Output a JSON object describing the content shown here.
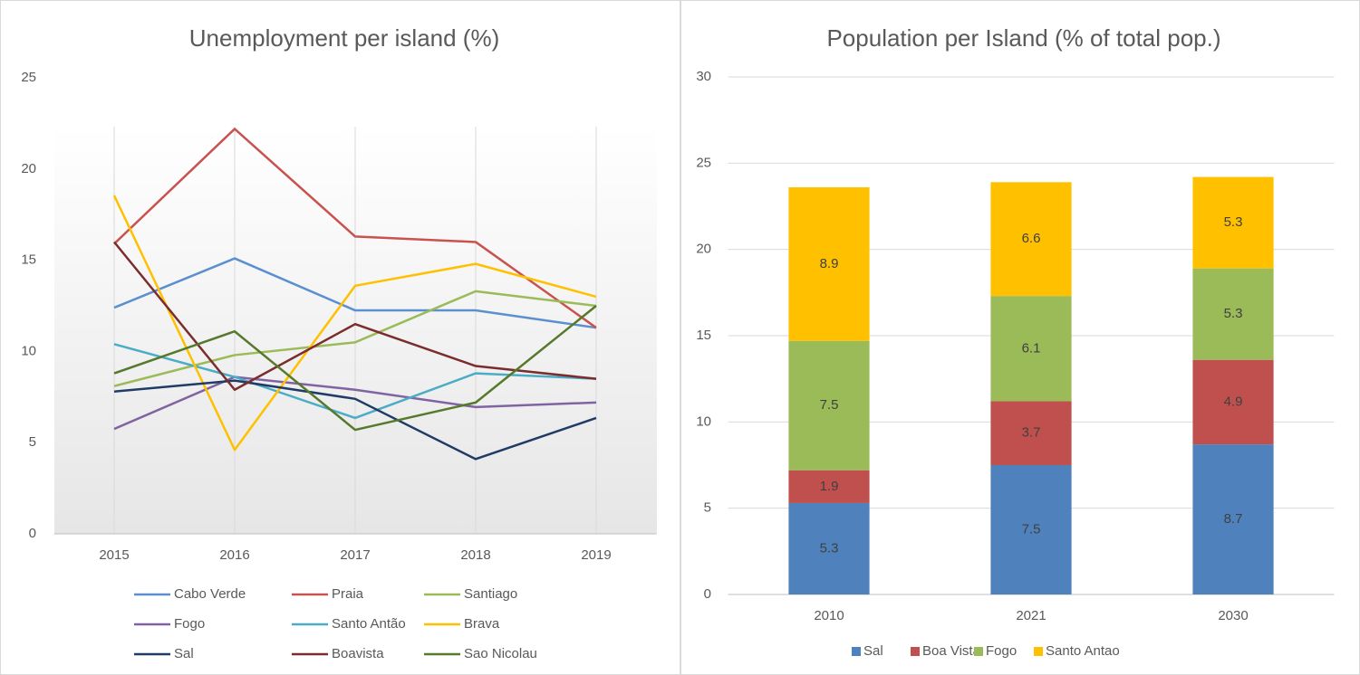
{
  "chart_data": [
    {
      "type": "line",
      "title": "Unemployment per island (%)",
      "categories": [
        "2015",
        "2016",
        "2017",
        "2018",
        "2019"
      ],
      "series": [
        {
          "name": "Cabo Verde",
          "color": "#5b8fd0",
          "values": [
            12.4,
            15.1,
            12.25,
            12.25,
            11.3
          ]
        },
        {
          "name": "Praia",
          "color": "#c9524f",
          "values": [
            15.9,
            22.2,
            16.3,
            16.0,
            11.3
          ]
        },
        {
          "name": "Santiago",
          "color": "#9bbb59",
          "values": [
            8.1,
            9.8,
            10.5,
            13.3,
            12.5
          ]
        },
        {
          "name": "Fogo",
          "color": "#8064a2",
          "values": [
            5.75,
            8.6,
            7.9,
            6.95,
            7.2
          ]
        },
        {
          "name": "Santo Antão",
          "color": "#4bacc6",
          "values": [
            10.4,
            8.6,
            6.35,
            8.8,
            8.5
          ]
        },
        {
          "name": "Brava",
          "color": "#ffc000",
          "values": [
            18.55,
            4.6,
            13.6,
            14.8,
            13.0
          ]
        },
        {
          "name": "Sal",
          "color": "#1f3b66",
          "values": [
            7.8,
            8.4,
            7.4,
            4.1,
            6.35
          ]
        },
        {
          "name": "Boavista",
          "color": "#7b2c2c",
          "values": [
            16.0,
            7.9,
            11.5,
            9.2,
            8.5
          ]
        },
        {
          "name": "Sao Nicolau",
          "color": "#567a2c",
          "values": [
            8.8,
            11.1,
            5.7,
            7.2,
            12.5
          ]
        }
      ],
      "ylim": [
        0,
        25
      ],
      "yticks": [
        0,
        5,
        10,
        15,
        20,
        25
      ],
      "grid": "x",
      "legend": "bottom"
    },
    {
      "type": "stacked_bar",
      "title": "Population per Island (% of total pop.)",
      "categories": [
        "2010",
        "2021",
        "2030"
      ],
      "series": [
        {
          "name": "Sal",
          "color": "#4f81bd",
          "values": [
            5.3,
            7.5,
            8.7
          ]
        },
        {
          "name": "Boa Vista",
          "color": "#c0504d",
          "values": [
            1.9,
            3.7,
            4.9
          ]
        },
        {
          "name": "Fogo",
          "color": "#9bbb59",
          "values": [
            7.5,
            6.1,
            5.3
          ]
        },
        {
          "name": "Santo Antao",
          "color": "#ffc000",
          "values": [
            8.9,
            6.6,
            5.3
          ]
        }
      ],
      "ylim": [
        0,
        30
      ],
      "yticks": [
        0,
        5,
        10,
        15,
        20,
        25,
        30
      ],
      "grid": "y",
      "legend": "bottom"
    }
  ]
}
